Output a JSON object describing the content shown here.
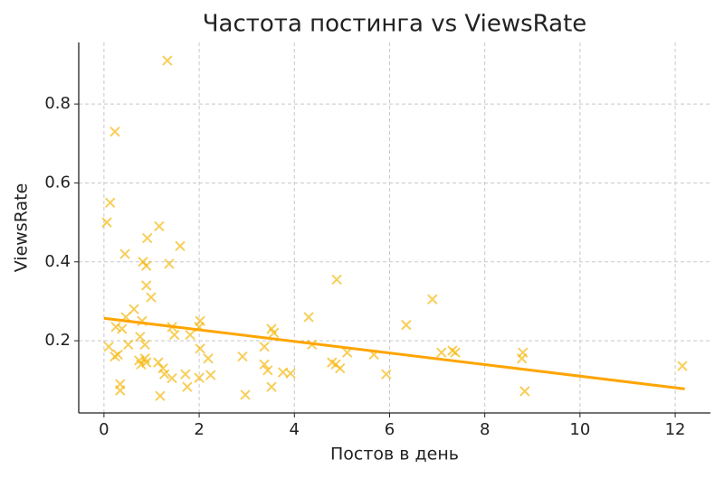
{
  "chart_data": {
    "type": "scatter",
    "title": "Частота постинга vs ViewsRate",
    "x_label": "Постов в день",
    "y_label": "ViewsRate",
    "x": [
      1.33,
      0.23,
      0.13,
      0.06,
      1.16,
      0.91,
      1.6,
      0.44,
      0.82,
      0.89,
      1.37,
      0.89,
      4.89,
      0.99,
      6.9,
      0.63,
      4.3,
      0.46,
      6.35,
      2.02,
      1.43,
      3.52,
      0.25,
      0.38,
      0.8,
      1.48,
      1.81,
      2.0,
      0.76,
      3.57,
      0.1,
      0.51,
      0.86,
      0.29,
      0.23,
      4.37,
      3.37,
      2.02,
      5.11,
      5.67,
      7.09,
      7.32,
      7.38,
      8.8,
      8.78,
      2.91,
      0.74,
      0.86,
      0.78,
      0.89,
      1.14,
      1.24,
      2.19,
      4.79,
      4.87,
      3.37,
      3.44,
      4.96,
      1.27,
      1.71,
      1.43,
      2.24,
      2.0,
      3.76,
      3.92,
      5.93,
      12.15,
      0.34,
      0.34,
      3.52,
      1.75,
      1.18,
      2.97,
      8.84
    ],
    "y": [
      0.91,
      0.73,
      0.55,
      0.5,
      0.49,
      0.46,
      0.44,
      0.42,
      0.4,
      0.39,
      0.395,
      0.34,
      0.355,
      0.31,
      0.305,
      0.28,
      0.26,
      0.26,
      0.24,
      0.25,
      0.235,
      0.23,
      0.235,
      0.23,
      0.25,
      0.215,
      0.215,
      0.235,
      0.21,
      0.22,
      0.185,
      0.19,
      0.19,
      0.165,
      0.16,
      0.19,
      0.185,
      0.18,
      0.17,
      0.165,
      0.17,
      0.175,
      0.17,
      0.17,
      0.155,
      0.16,
      0.15,
      0.155,
      0.14,
      0.145,
      0.145,
      0.13,
      0.155,
      0.145,
      0.14,
      0.14,
      0.125,
      0.13,
      0.115,
      0.115,
      0.105,
      0.113,
      0.106,
      0.12,
      0.117,
      0.115,
      0.136,
      0.09,
      0.074,
      0.083,
      0.083,
      0.06,
      0.063,
      0.072
    ],
    "color": "#f5b400",
    "marker": "x",
    "trend": {
      "x": [
        0,
        12.2
      ],
      "y": [
        0.257,
        0.078
      ],
      "color": "#ffa500"
    },
    "xlim": [
      -0.53,
      12.74
    ],
    "ylim": [
      0.017,
      0.956
    ],
    "xticks": [
      0,
      2,
      4,
      6,
      8,
      10,
      12
    ],
    "yticks": [
      0.2,
      0.4,
      0.6,
      0.8
    ],
    "grid": true
  }
}
